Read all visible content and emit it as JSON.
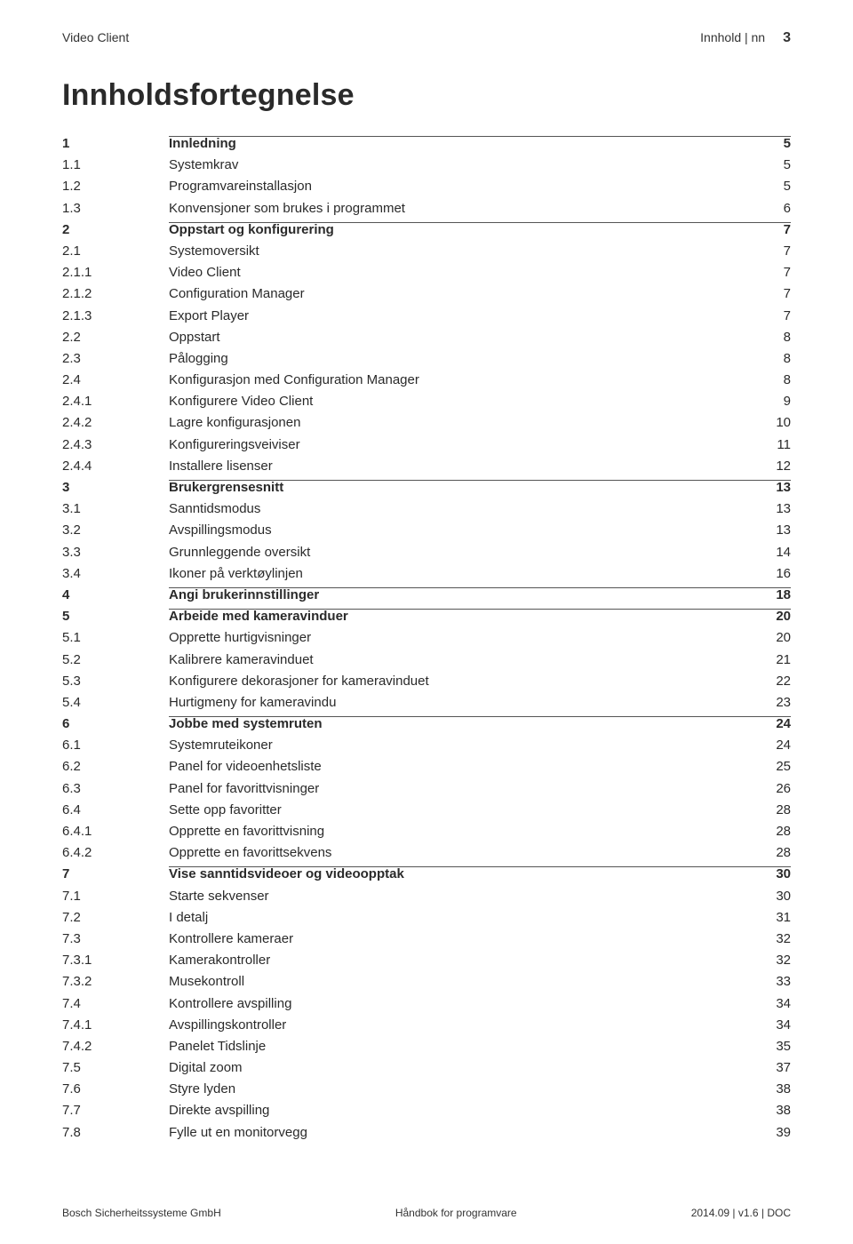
{
  "header": {
    "left": "Video Client",
    "right_label": "Innhold | nn",
    "page_number": "3"
  },
  "toc_title": "Innholdsfortegnelse",
  "entries": [
    {
      "num": "1",
      "title": "Innledning",
      "page": "5",
      "level": "chapter"
    },
    {
      "num": "1.1",
      "title": "Systemkrav",
      "page": "5",
      "level": "sub"
    },
    {
      "num": "1.2",
      "title": "Programvareinstallasjon",
      "page": "5",
      "level": "sub"
    },
    {
      "num": "1.3",
      "title": "Konvensjoner som brukes i programmet",
      "page": "6",
      "level": "sub"
    },
    {
      "num": "2",
      "title": "Oppstart og konfigurering",
      "page": "7",
      "level": "chapter"
    },
    {
      "num": "2.1",
      "title": "Systemoversikt",
      "page": "7",
      "level": "sub"
    },
    {
      "num": "2.1.1",
      "title": "Video Client",
      "page": "7",
      "level": "sub"
    },
    {
      "num": "2.1.2",
      "title": "Configuration Manager",
      "page": "7",
      "level": "sub"
    },
    {
      "num": "2.1.3",
      "title": "Export Player",
      "page": "7",
      "level": "sub"
    },
    {
      "num": "2.2",
      "title": "Oppstart",
      "page": "8",
      "level": "sub"
    },
    {
      "num": "2.3",
      "title": "Pålogging",
      "page": "8",
      "level": "sub"
    },
    {
      "num": "2.4",
      "title": "Konfigurasjon med Configuration Manager",
      "page": "8",
      "level": "sub"
    },
    {
      "num": "2.4.1",
      "title": "Konfigurere Video Client",
      "page": "9",
      "level": "sub"
    },
    {
      "num": "2.4.2",
      "title": "Lagre konfigurasjonen",
      "page": "10",
      "level": "sub"
    },
    {
      "num": "2.4.3",
      "title": "Konfigureringsveiviser",
      "page": "11",
      "level": "sub"
    },
    {
      "num": "2.4.4",
      "title": "Installere lisenser",
      "page": "12",
      "level": "sub"
    },
    {
      "num": "3",
      "title": "Brukergrensesnitt",
      "page": "13",
      "level": "chapter"
    },
    {
      "num": "3.1",
      "title": "Sanntidsmodus",
      "page": "13",
      "level": "sub"
    },
    {
      "num": "3.2",
      "title": "Avspillingsmodus",
      "page": "13",
      "level": "sub"
    },
    {
      "num": "3.3",
      "title": "Grunnleggende oversikt",
      "page": "14",
      "level": "sub"
    },
    {
      "num": "3.4",
      "title": "Ikoner på verktøylinjen",
      "page": "16",
      "level": "sub"
    },
    {
      "num": "4",
      "title": "Angi brukerinnstillinger",
      "page": "18",
      "level": "chapter"
    },
    {
      "num": "5",
      "title": "Arbeide med kameravinduer",
      "page": "20",
      "level": "chapter"
    },
    {
      "num": "5.1",
      "title": "Opprette hurtigvisninger",
      "page": "20",
      "level": "sub"
    },
    {
      "num": "5.2",
      "title": "Kalibrere kameravinduet",
      "page": "21",
      "level": "sub"
    },
    {
      "num": "5.3",
      "title": "Konfigurere dekorasjoner for kameravinduet",
      "page": "22",
      "level": "sub"
    },
    {
      "num": "5.4",
      "title": "Hurtigmeny for kameravindu",
      "page": "23",
      "level": "sub"
    },
    {
      "num": "6",
      "title": "Jobbe med systemruten",
      "page": "24",
      "level": "chapter"
    },
    {
      "num": "6.1",
      "title": "Systemruteikoner",
      "page": "24",
      "level": "sub"
    },
    {
      "num": "6.2",
      "title": "Panel for videoenhetsliste",
      "page": "25",
      "level": "sub"
    },
    {
      "num": "6.3",
      "title": "Panel for favorittvisninger",
      "page": "26",
      "level": "sub"
    },
    {
      "num": "6.4",
      "title": "Sette opp favoritter",
      "page": "28",
      "level": "sub"
    },
    {
      "num": "6.4.1",
      "title": "Opprette en favorittvisning",
      "page": "28",
      "level": "sub"
    },
    {
      "num": "6.4.2",
      "title": "Opprette en favorittsekvens",
      "page": "28",
      "level": "sub"
    },
    {
      "num": "7",
      "title": "Vise sanntidsvideoer og videoopptak",
      "page": "30",
      "level": "chapter"
    },
    {
      "num": "7.1",
      "title": "Starte sekvenser",
      "page": "30",
      "level": "sub"
    },
    {
      "num": "7.2",
      "title": "I detalj",
      "page": "31",
      "level": "sub"
    },
    {
      "num": "7.3",
      "title": "Kontrollere kameraer",
      "page": "32",
      "level": "sub"
    },
    {
      "num": "7.3.1",
      "title": "Kamerakontroller",
      "page": "32",
      "level": "sub"
    },
    {
      "num": "7.3.2",
      "title": "Musekontroll",
      "page": "33",
      "level": "sub"
    },
    {
      "num": "7.4",
      "title": "Kontrollere avspilling",
      "page": "34",
      "level": "sub"
    },
    {
      "num": "7.4.1",
      "title": "Avspillingskontroller",
      "page": "34",
      "level": "sub"
    },
    {
      "num": "7.4.2",
      "title": "Panelet Tidslinje",
      "page": "35",
      "level": "sub"
    },
    {
      "num": "7.5",
      "title": "Digital zoom",
      "page": "37",
      "level": "sub"
    },
    {
      "num": "7.6",
      "title": "Styre lyden",
      "page": "38",
      "level": "sub"
    },
    {
      "num": "7.7",
      "title": "Direkte avspilling",
      "page": "38",
      "level": "sub"
    },
    {
      "num": "7.8",
      "title": "Fylle ut en monitorvegg",
      "page": "39",
      "level": "sub"
    }
  ],
  "footer": {
    "left": "Bosch Sicherheitssysteme GmbH",
    "center": "Håndbok for programvare",
    "right": "2014.09 | v1.6 | DOC"
  }
}
